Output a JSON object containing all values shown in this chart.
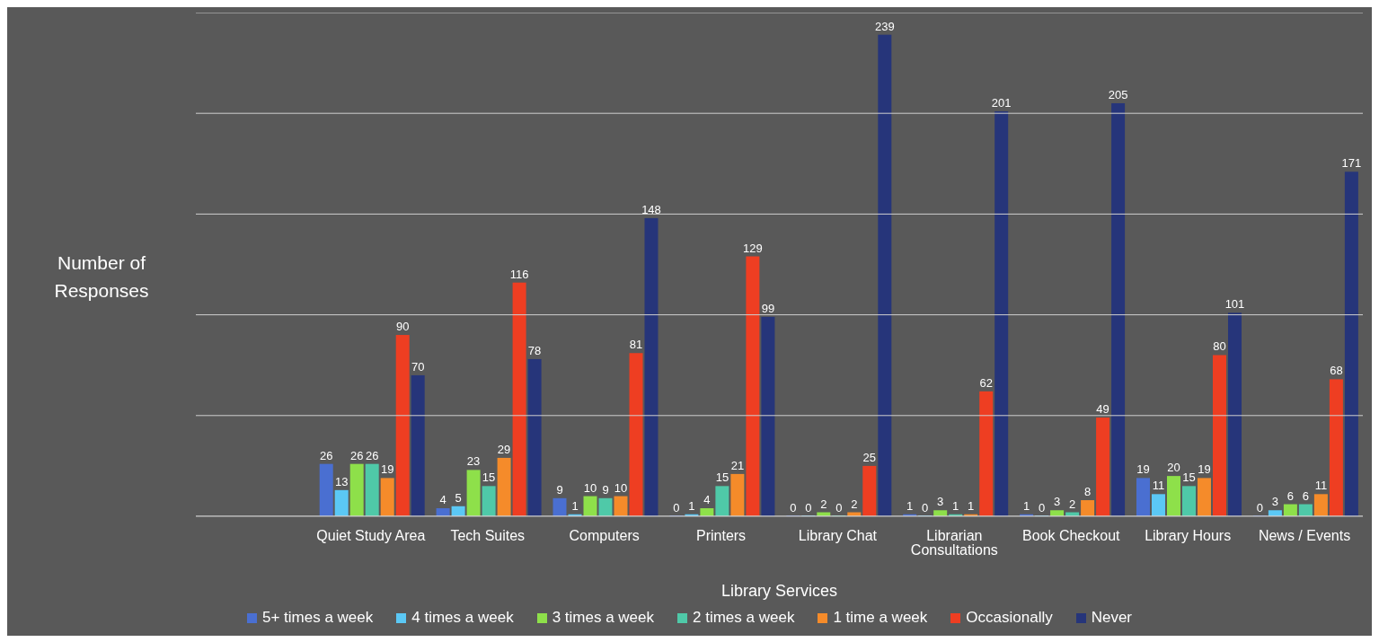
{
  "chart_data": {
    "type": "bar",
    "xlabel": "Library Services",
    "ylabel": "Number of Responses",
    "categories": [
      null,
      "Quiet Study Area",
      "Tech Suites",
      "Computers",
      "Printers",
      "Library Chat",
      "Librarian Consultations",
      "Book Checkout",
      "Library Hours",
      "News / Events"
    ],
    "series": [
      {
        "name": "5+ times a week",
        "color": "#4a6fd1",
        "values": [
          null,
          26,
          4,
          9,
          0,
          0,
          1,
          1,
          19,
          0
        ]
      },
      {
        "name": "4 times a week",
        "color": "#5bc8f5",
        "values": [
          null,
          13,
          5,
          1,
          1,
          0,
          0,
          0,
          11,
          3
        ]
      },
      {
        "name": "3 times a week",
        "color": "#8ee04a",
        "values": [
          null,
          26,
          23,
          10,
          4,
          2,
          3,
          3,
          20,
          6
        ]
      },
      {
        "name": "2 times a week",
        "color": "#4fc9a8",
        "values": [
          null,
          26,
          15,
          9,
          15,
          0,
          1,
          2,
          15,
          6
        ]
      },
      {
        "name": "1 time a week",
        "color": "#f58b2a",
        "values": [
          null,
          19,
          29,
          10,
          21,
          2,
          1,
          8,
          19,
          11
        ]
      },
      {
        "name": "Occasionally",
        "color": "#ee3e22",
        "values": [
          null,
          90,
          116,
          81,
          129,
          25,
          62,
          49,
          80,
          68
        ]
      },
      {
        "name": "Never",
        "color": "#26357a",
        "values": [
          null,
          70,
          78,
          148,
          99,
          239,
          201,
          205,
          101,
          171
        ]
      }
    ],
    "ylim": [
      0,
      250
    ],
    "yticks": [
      {
        "value": 0,
        "label": null
      },
      {
        "value": 50,
        "label": null
      },
      {
        "value": 100,
        "label": null
      },
      {
        "value": 150,
        "label": null
      },
      {
        "value": 200,
        "label": null
      },
      {
        "value": 250,
        "label": null
      }
    ],
    "tick_labels": "x",
    "grid": "y",
    "legend": "bottom",
    "data_labels": true
  }
}
